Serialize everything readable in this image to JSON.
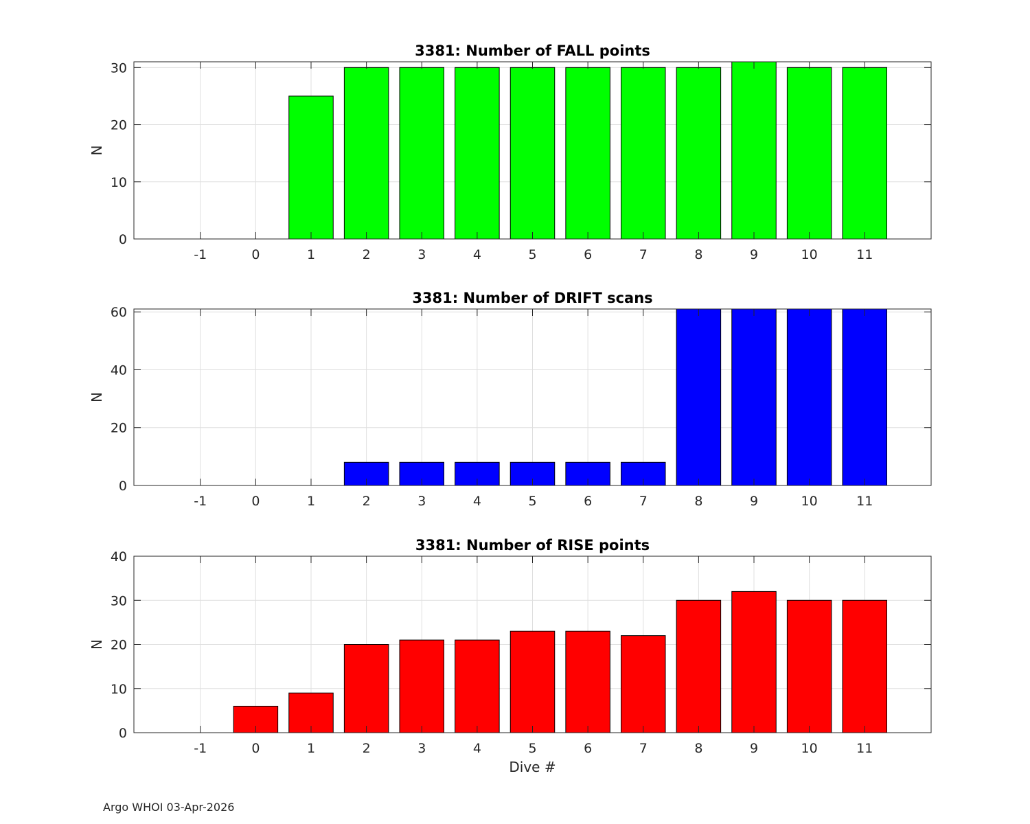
{
  "chart_data": [
    {
      "type": "bar",
      "title": "3381: Number of FALL points",
      "xlabel": "",
      "ylabel": "N",
      "categories": [
        -1,
        0,
        1,
        2,
        3,
        4,
        5,
        6,
        7,
        8,
        9,
        10,
        11
      ],
      "values": [
        0,
        0,
        25,
        30,
        30,
        30,
        30,
        30,
        30,
        30,
        31,
        30,
        30
      ],
      "ylim": [
        0,
        31
      ],
      "xlim": [
        -2.2,
        12.2
      ],
      "yticks": [
        0,
        10,
        20,
        30
      ],
      "grid": true,
      "color": "#00ff00"
    },
    {
      "type": "bar",
      "title": "3381: Number of DRIFT scans",
      "xlabel": "",
      "ylabel": "N",
      "categories": [
        -1,
        0,
        1,
        2,
        3,
        4,
        5,
        6,
        7,
        8,
        9,
        10,
        11
      ],
      "values": [
        0,
        0,
        0,
        8,
        8,
        8,
        8,
        8,
        8,
        61,
        61,
        61,
        61
      ],
      "ylim": [
        0,
        61
      ],
      "xlim": [
        -2.2,
        12.2
      ],
      "yticks": [
        0,
        20,
        40,
        60
      ],
      "grid": true,
      "color": "#0000ff"
    },
    {
      "type": "bar",
      "title": "3381: Number of RISE points",
      "xlabel": "Dive #",
      "ylabel": "N",
      "categories": [
        -1,
        0,
        1,
        2,
        3,
        4,
        5,
        6,
        7,
        8,
        9,
        10,
        11
      ],
      "values": [
        0,
        6,
        9,
        20,
        21,
        21,
        23,
        23,
        22,
        30,
        32,
        30,
        30
      ],
      "ylim": [
        0,
        40
      ],
      "xlim": [
        -2.2,
        12.2
      ],
      "yticks": [
        0,
        10,
        20,
        30,
        40
      ],
      "grid": true,
      "color": "#ff0000"
    }
  ],
  "footer": "Argo WHOI 03-Apr-2026"
}
